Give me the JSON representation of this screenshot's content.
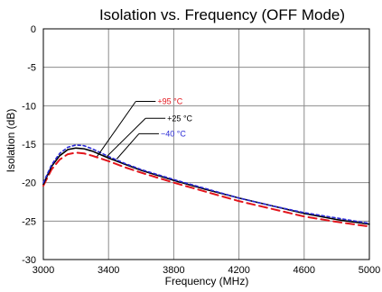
{
  "chart_data": {
    "type": "line",
    "title": "Isolation vs. Frequency (OFF Mode)",
    "xlabel": "Frequency (MHz)",
    "ylabel": "Isolation (dB)",
    "xlim": [
      3000,
      5000
    ],
    "ylim": [
      -30,
      0
    ],
    "xticks": [
      3000,
      3400,
      3800,
      4200,
      4600,
      5000
    ],
    "yticks": [
      0,
      -5,
      -10,
      -15,
      -20,
      -25,
      -30
    ],
    "grid": true,
    "series": [
      {
        "name": "+95 °C",
        "color": "#e3141b",
        "dash": "dashed",
        "x": [
          3000,
          3050,
          3100,
          3150,
          3200,
          3250,
          3300,
          3400,
          3500,
          3600,
          3800,
          4000,
          4200,
          4400,
          4600,
          4800,
          5000
        ],
        "y": [
          -20.4,
          -18.3,
          -17.0,
          -16.3,
          -16.1,
          -16.2,
          -16.5,
          -17.2,
          -18.0,
          -18.7,
          -20.0,
          -21.2,
          -22.4,
          -23.4,
          -24.4,
          -25.1,
          -25.7
        ]
      },
      {
        "name": "+25 °C",
        "color": "#000000",
        "dash": "solid",
        "x": [
          3000,
          3050,
          3100,
          3150,
          3200,
          3250,
          3300,
          3400,
          3500,
          3600,
          3800,
          4000,
          4200,
          4400,
          4600,
          4800,
          5000
        ],
        "y": [
          -20.2,
          -17.9,
          -16.5,
          -15.7,
          -15.5,
          -15.6,
          -15.9,
          -16.8,
          -17.6,
          -18.4,
          -19.7,
          -20.9,
          -22.0,
          -23.0,
          -24.0,
          -24.8,
          -25.4
        ]
      },
      {
        "name": "−40 °C",
        "color": "#2b2bd6",
        "dash": "dotted",
        "x": [
          3000,
          3050,
          3100,
          3150,
          3200,
          3250,
          3300,
          3400,
          3500,
          3600,
          3800,
          4000,
          4200,
          4400,
          4600,
          4800,
          5000
        ],
        "y": [
          -20.0,
          -17.7,
          -16.2,
          -15.4,
          -15.1,
          -15.2,
          -15.6,
          -16.6,
          -17.5,
          -18.3,
          -19.6,
          -20.8,
          -22.0,
          -23.0,
          -23.9,
          -24.6,
          -25.3
        ]
      }
    ]
  }
}
